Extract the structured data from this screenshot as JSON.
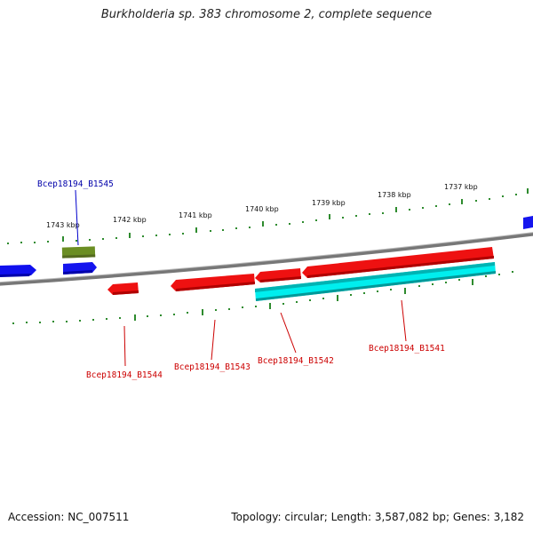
{
  "title": "Burkholderia sp. 383 chromosome 2, complete sequence",
  "footer": {
    "accession": "Accession: NC_007511",
    "summary": "Topology: circular; Length: 3,587,082 bp; Genes: 3,182"
  },
  "colors": {
    "backbone": "#888888",
    "ticks": "#2e8b2e",
    "forward_gene": "#0000ee",
    "reverse_gene": "#ee0000",
    "pseudo_gene": "#6b8e23",
    "cds_feature": "#00e5ee",
    "forward_label": "#0000aa",
    "reverse_label": "#cc0000"
  },
  "ruler_labels": [
    "1737 kbp",
    "1738 kbp",
    "1739 kbp",
    "1740 kbp",
    "1741 kbp",
    "1742 kbp",
    "1743 kbp"
  ],
  "gene_labels": {
    "b1545": "Bcep18194_B1545",
    "b1544": "Bcep18194_B1544",
    "b1543": "Bcep18194_B1543",
    "b1542": "Bcep18194_B1542",
    "b1541": "Bcep18194_B1541"
  }
}
